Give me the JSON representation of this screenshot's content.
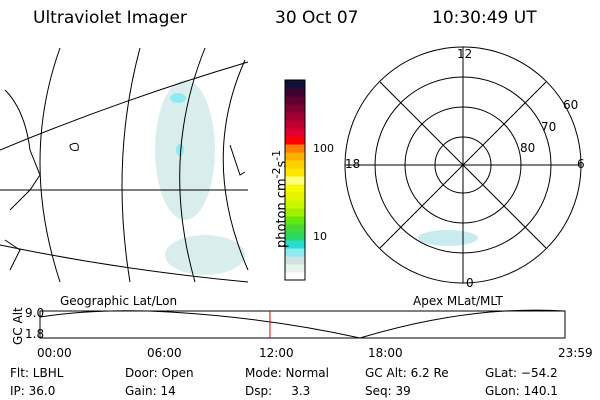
{
  "header": {
    "title": "Ultraviolet Imager",
    "date": "30 Oct 07",
    "time": "10:30:49 UT"
  },
  "colorbar": {
    "label": "photon cm",
    "sup1": "-2",
    "mid": "s",
    "sup2": "-1",
    "ticks": [
      "100",
      "10"
    ],
    "colors": [
      "#ffffff",
      "#e8f2ec",
      "#d2e2e0",
      "#8ee9f0",
      "#28dcd2",
      "#28d864",
      "#48d838",
      "#60e810",
      "#a0f000",
      "#c8f800",
      "#e6f400",
      "#f4f800",
      "#ffff80",
      "#ffe800",
      "#ffd000",
      "#ffb000",
      "#ff8000",
      "#ff0000",
      "#e00030",
      "#c00030",
      "#a00030",
      "#800030",
      "#600030",
      "#400030",
      "#101038"
    ]
  },
  "polar": {
    "mlt_labels": {
      "top": "12",
      "bottom": "0",
      "left": "18",
      "right": "6"
    },
    "lat_labels": [
      "60",
      "70",
      "80"
    ]
  },
  "strip": {
    "left_title": "Geographic Lat/Lon",
    "right_title": "Apex MLat/MLT",
    "ylabel": "GC Alt",
    "yticks": [
      "9.0",
      "1.8"
    ],
    "xticks": [
      "00:00",
      "06:00",
      "12:00",
      "18:00",
      "23:59"
    ],
    "current_time_fraction": 0.438,
    "line_color": "#e00000"
  },
  "info": [
    [
      "Flt: LBHL",
      "Door: Open",
      "Mode: Normal",
      "GC Alt: 6.2 Re",
      "GLat: −54.2"
    ],
    [
      "IP: 36.0",
      "Gain: 14",
      "Dsp:     3.3",
      "Seq: 39",
      "GLon: 140.1"
    ]
  ]
}
